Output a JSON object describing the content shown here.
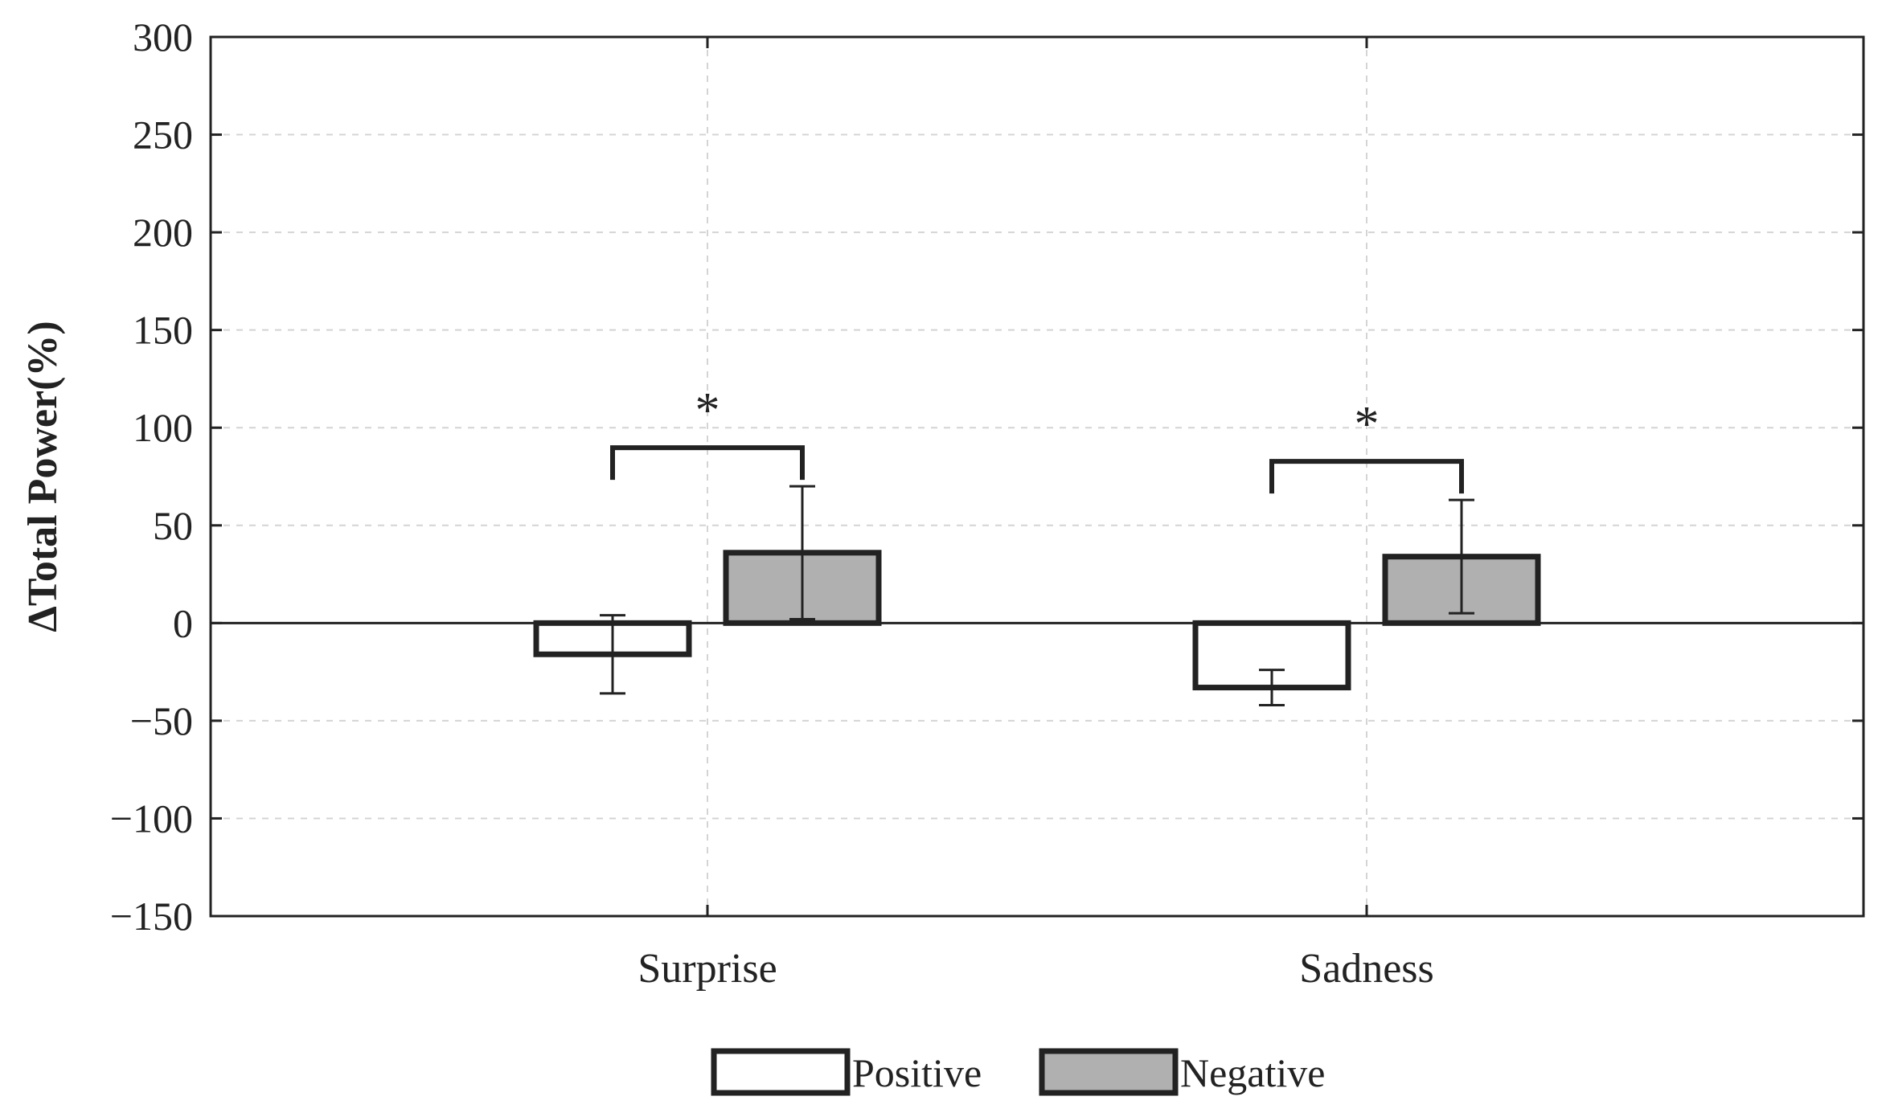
{
  "chart_data": {
    "type": "bar",
    "title": "",
    "xlabel": "",
    "ylabel": "ΔTotal Power(%)",
    "ylim": [
      -150,
      300
    ],
    "yticks": [
      300,
      250,
      200,
      150,
      100,
      50,
      0,
      -50,
      -100,
      -150
    ],
    "ytick_labels": [
      "300",
      "250",
      "200",
      "150",
      "100",
      "50",
      "0",
      "−50",
      "−100",
      "−150"
    ],
    "categories": [
      "Surprise",
      "Sadness"
    ],
    "series": [
      {
        "name": "Positive",
        "color": "#ffffff",
        "values": [
          -16,
          -33
        ],
        "errors": [
          20,
          9
        ]
      },
      {
        "name": "Negative",
        "color": "#b0b0b0",
        "values": [
          36,
          34
        ],
        "errors": [
          34,
          29
        ]
      }
    ],
    "significance": [
      {
        "category": "Surprise",
        "label": "*"
      },
      {
        "category": "Sadness",
        "label": "*"
      }
    ],
    "grid": true,
    "legend": "bottom-center"
  }
}
